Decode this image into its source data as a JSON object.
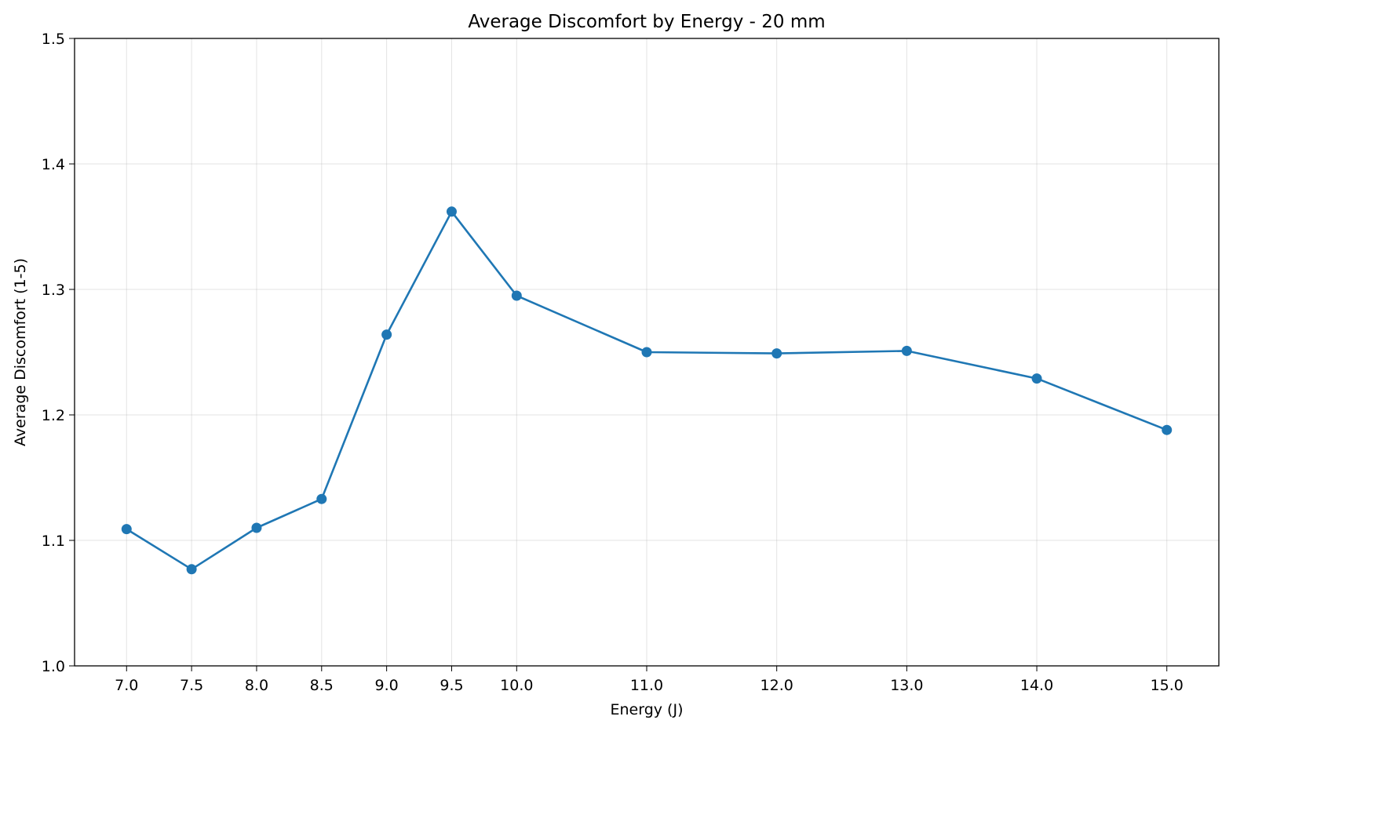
{
  "chart_data": {
    "type": "line",
    "title": "Average Discomfort by Energy - 20 mm",
    "xlabel": "Energy (J)",
    "ylabel": "Average Discomfort (1-5)",
    "x": [
      7.0,
      7.5,
      8.0,
      8.5,
      9.0,
      9.5,
      10.0,
      11.0,
      12.0,
      13.0,
      14.0,
      15.0
    ],
    "x_tick_labels": [
      "7.0",
      "7.5",
      "8.0",
      "8.5",
      "9.0",
      "9.5",
      "10.0",
      "11.0",
      "12.0",
      "13.0",
      "14.0",
      "15.0"
    ],
    "series": [
      {
        "values": [
          1.109,
          1.077,
          1.11,
          1.133,
          1.264,
          1.362,
          1.295,
          1.25,
          1.249,
          1.251,
          1.229,
          1.188
        ],
        "color": "#1f77b4",
        "marker": "circle"
      }
    ],
    "xlim": [
      6.6,
      15.4
    ],
    "ylim": [
      1.0,
      1.5
    ],
    "y_ticks": [
      1.0,
      1.1,
      1.2,
      1.3,
      1.4,
      1.5
    ],
    "y_tick_labels": [
      "1.0",
      "1.1",
      "1.2",
      "1.3",
      "1.4",
      "1.5"
    ],
    "grid": true
  }
}
